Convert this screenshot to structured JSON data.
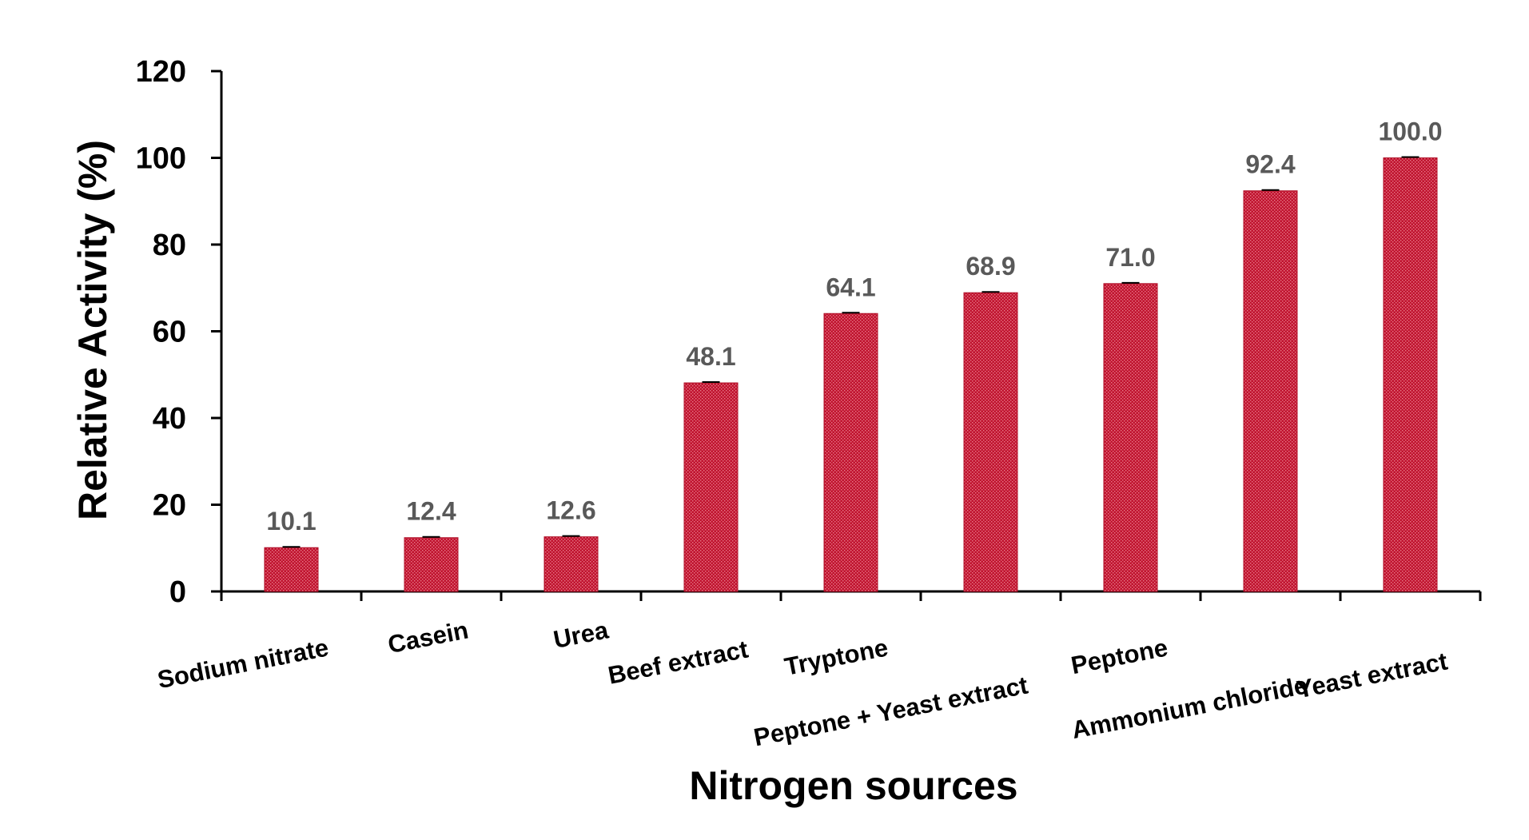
{
  "chart_data": {
    "type": "bar",
    "title": "",
    "xlabel": "Nitrogen sources",
    "ylabel": "Relative Activity (%)",
    "categories": [
      "Sodium nitrate",
      "Casein",
      "Urea",
      "Beef extract",
      "Tryptone",
      "Peptone + Yeast extract",
      "Peptone",
      "Ammonium chloride",
      "Yeast extract"
    ],
    "values": [
      10.1,
      12.4,
      12.6,
      48.1,
      64.1,
      68.9,
      71.0,
      92.4,
      100.0
    ],
    "data_labels": [
      "10.1",
      "12.4",
      "12.6",
      "48.1",
      "64.1",
      "68.9",
      "71.0",
      "92.4",
      "100.0"
    ],
    "ylim": [
      0,
      120
    ],
    "yticks": [
      0,
      20,
      40,
      60,
      80,
      100,
      120
    ],
    "grid": false,
    "legend": "none",
    "bar_color": "#C0142F",
    "bar_pattern": "dotted",
    "error_bars": true
  }
}
